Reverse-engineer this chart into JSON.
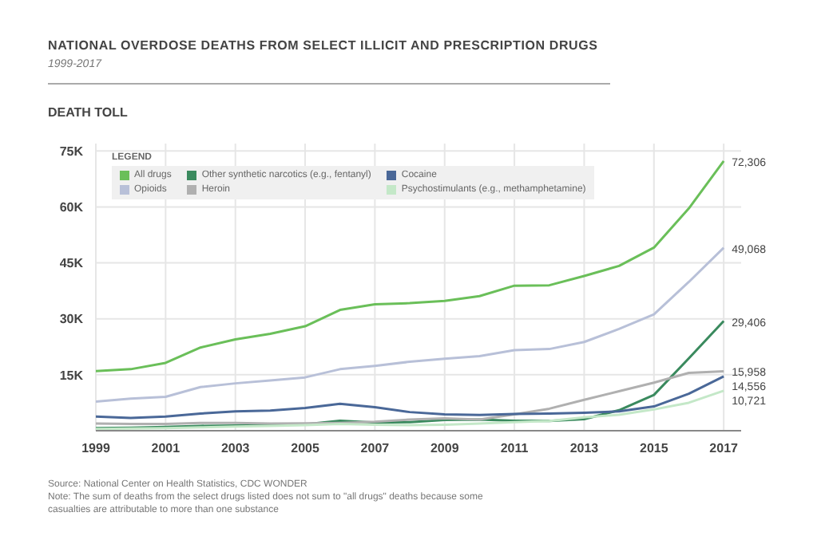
{
  "chart_data": {
    "type": "line",
    "title": "NATIONAL OVERDOSE DEATHS FROM SELECT ILLICIT AND PRESCRIPTION DRUGS",
    "subtitle": "1999-2017",
    "ylabel": "DEATH TOLL",
    "legend_title": "LEGEND",
    "legend": "top left",
    "grid": true,
    "marker": "none",
    "line_style": "solid",
    "x": [
      1999,
      2000,
      2001,
      2002,
      2003,
      2004,
      2005,
      2006,
      2007,
      2008,
      2009,
      2010,
      2011,
      2012,
      2013,
      2014,
      2015,
      2016,
      2017
    ],
    "xlim": [
      1999,
      2017.5
    ],
    "xticks": [
      1999,
      2001,
      2003,
      2005,
      2007,
      2009,
      2011,
      2013,
      2015,
      2017
    ],
    "ylim": [
      0,
      77000
    ],
    "yticks": [
      {
        "value": 15000,
        "label": "15K"
      },
      {
        "value": 30000,
        "label": "30K"
      },
      {
        "value": 45000,
        "label": "45K"
      },
      {
        "value": 60000,
        "label": "60K"
      },
      {
        "value": 75000,
        "label": "75K"
      }
    ],
    "series": [
      {
        "name": "All drugs",
        "color": "#6abf59",
        "values": [
          16000,
          16500,
          18200,
          22300,
          24500,
          26000,
          28000,
          32400,
          33900,
          34200,
          34800,
          36100,
          38900,
          39000,
          41500,
          44200,
          49100,
          59600,
          72306
        ],
        "value_labels": [
          null,
          null,
          null,
          null,
          null,
          null,
          null,
          null,
          null,
          null,
          null,
          null,
          null,
          null,
          null,
          null,
          null,
          null,
          "72,306"
        ]
      },
      {
        "name": "Opioids",
        "color": "#b8c0d8",
        "values": [
          7800,
          8600,
          9100,
          11700,
          12700,
          13500,
          14300,
          16500,
          17400,
          18500,
          19300,
          20000,
          21600,
          21900,
          23800,
          27300,
          31200,
          39900,
          49068
        ],
        "value_labels": [
          null,
          null,
          null,
          null,
          null,
          null,
          null,
          null,
          null,
          null,
          null,
          null,
          null,
          null,
          null,
          null,
          null,
          null,
          "49,068"
        ]
      },
      {
        "name": "Other synthetic narcotics (e.g., fentanyl)",
        "color": "#3a8a5e",
        "values": [
          700,
          800,
          1000,
          1300,
          1400,
          1700,
          1700,
          2700,
          2200,
          2300,
          2900,
          3000,
          2700,
          2600,
          3100,
          5500,
          9600,
          19400,
          29406
        ],
        "value_labels": [
          null,
          null,
          null,
          null,
          null,
          null,
          null,
          null,
          null,
          null,
          null,
          null,
          null,
          null,
          null,
          null,
          null,
          null,
          "29,406"
        ]
      },
      {
        "name": "Heroin",
        "color": "#b0b0b0",
        "values": [
          1900,
          1800,
          1800,
          2100,
          2100,
          1900,
          2000,
          2100,
          2400,
          3000,
          3300,
          3000,
          4400,
          5900,
          8300,
          10600,
          12900,
          15500,
          15958
        ],
        "value_labels": [
          null,
          null,
          null,
          null,
          null,
          null,
          null,
          null,
          null,
          null,
          null,
          null,
          null,
          null,
          null,
          null,
          null,
          null,
          "15,958"
        ]
      },
      {
        "name": "Cocaine",
        "color": "#4a6898",
        "values": [
          3800,
          3400,
          3800,
          4600,
          5200,
          5400,
          6100,
          7200,
          6300,
          5000,
          4400,
          4200,
          4500,
          4600,
          4800,
          5200,
          6500,
          9900,
          14556
        ],
        "value_labels": [
          null,
          null,
          null,
          null,
          null,
          null,
          null,
          null,
          null,
          null,
          null,
          null,
          null,
          null,
          null,
          null,
          null,
          null,
          "14,556"
        ]
      },
      {
        "name": "Psychostimulants (e.g., methamphetamine)",
        "color": "#c4e8c8",
        "values": [
          500,
          600,
          700,
          900,
          1100,
          1300,
          1500,
          1800,
          1600,
          1500,
          1600,
          1900,
          2300,
          2600,
          3600,
          4300,
          5700,
          7500,
          10721
        ],
        "value_labels": [
          null,
          null,
          null,
          null,
          null,
          null,
          null,
          null,
          null,
          null,
          null,
          null,
          null,
          null,
          null,
          null,
          null,
          null,
          "10,721"
        ]
      }
    ],
    "annotations": [
      "Source: National Center on Health Statistics, CDC WONDER",
      "Note: The sum of deaths from the select drugs listed does not sum to \"all drugs\" deaths because some casualties are attributable to more than one substance"
    ]
  }
}
